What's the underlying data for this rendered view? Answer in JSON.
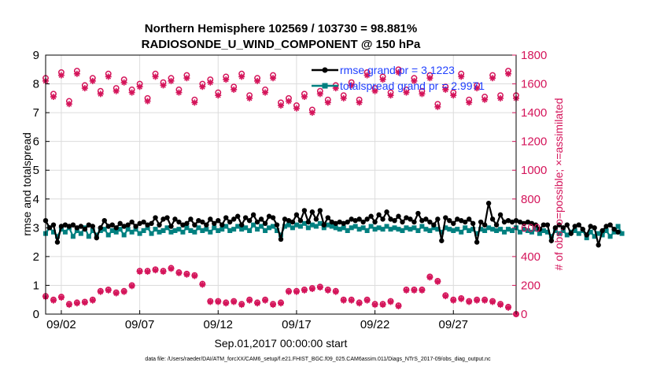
{
  "chart_data": {
    "type": "line",
    "title_line1": "Northern Hemisphere 102569 / 103730 = 98.881%",
    "title_line2": "RADIOSONDE_U_WIND_COMPONENT @ 150 hPa",
    "xlabel": "Sep.01,2017 00:00:00 start",
    "ylabel_left": "rmse and totalspread",
    "ylabel_right": "# of obs: o=possible; ×=assimilated",
    "footnote": "data file: /Users/raeder/DAI/ATM_forcXX/CAM6_setup/f.e21.FHIST_BGC.f09_025.CAM6assim.011/Diags_NTrS_2017-09/obs_diag_output.nc",
    "xlim": [
      1,
      31
    ],
    "ylim_left": [
      0,
      9
    ],
    "ylim_right": [
      0,
      1800
    ],
    "xticks": [
      2,
      7,
      12,
      17,
      22,
      27
    ],
    "xtick_labels": [
      "09/02",
      "09/07",
      "09/12",
      "09/17",
      "09/22",
      "09/27"
    ],
    "yticks_left": [
      0,
      1,
      2,
      3,
      4,
      5,
      6,
      7,
      8,
      9
    ],
    "yticks_right": [
      0,
      200,
      400,
      600,
      800,
      1000,
      1200,
      1400,
      1600,
      1800
    ],
    "legend": {
      "rmse": "rmse grand pr = 3.1223",
      "spread": "totalspread grand pr = 2.9971"
    },
    "colors": {
      "rmse": "#000000",
      "spread": "#008080",
      "obs": "#d4145a"
    },
    "x_start": 1.0,
    "x_step": 0.25,
    "series": [
      {
        "name": "rmse",
        "values": [
          3.25,
          3.0,
          3.1,
          2.5,
          3.05,
          3.1,
          3.05,
          3.1,
          3.0,
          3.05,
          2.95,
          3.1,
          3.05,
          2.65,
          3.0,
          3.25,
          3.05,
          3.1,
          3.0,
          3.15,
          3.05,
          3.1,
          3.2,
          3.05,
          3.15,
          3.2,
          3.1,
          3.15,
          3.35,
          3.1,
          3.3,
          3.35,
          3.05,
          3.3,
          3.2,
          3.1,
          3.15,
          3.3,
          3.1,
          3.25,
          3.2,
          3.1,
          3.3,
          3.15,
          3.25,
          3.1,
          3.35,
          3.2,
          3.3,
          3.4,
          3.1,
          3.35,
          3.25,
          3.45,
          3.2,
          3.3,
          3.15,
          3.4,
          3.35,
          3.1,
          2.6,
          3.3,
          3.25,
          3.2,
          3.45,
          3.25,
          3.6,
          3.2,
          3.55,
          3.3,
          3.6,
          3.1,
          3.35,
          3.2,
          3.15,
          3.2,
          3.15,
          3.2,
          3.3,
          3.25,
          3.3,
          3.2,
          3.3,
          3.4,
          3.2,
          3.45,
          3.3,
          3.55,
          3.3,
          3.25,
          3.4,
          3.2,
          3.35,
          3.3,
          3.2,
          3.5,
          3.25,
          3.3,
          3.2,
          3.1,
          3.3,
          2.55,
          3.35,
          3.25,
          3.15,
          3.3,
          3.25,
          3.2,
          3.3,
          3.15,
          2.5,
          3.2,
          3.1,
          3.85,
          3.3,
          3.1,
          3.45,
          3.2,
          3.25,
          3.2,
          3.25,
          3.2,
          3.15,
          3.2,
          3.15,
          3.1,
          2.95,
          3.1,
          3.1,
          2.55,
          3.0,
          3.1,
          3.0,
          3.1,
          2.8,
          3.05,
          3.1,
          2.95,
          2.75,
          3.05,
          3.0,
          2.4,
          2.9,
          3.05,
          3.1,
          2.95,
          2.85
        ]
      },
      {
        "name": "totalspread",
        "values": [
          2.8,
          3.0,
          2.85,
          2.7,
          2.95,
          2.85,
          3.0,
          2.7,
          2.9,
          2.8,
          3.0,
          2.7,
          2.9,
          2.75,
          2.9,
          2.95,
          2.75,
          2.9,
          2.85,
          2.95,
          2.75,
          2.95,
          2.85,
          2.95,
          2.8,
          2.9,
          3.0,
          2.8,
          2.95,
          2.85,
          2.9,
          3.0,
          2.85,
          2.9,
          2.95,
          2.85,
          3.0,
          2.9,
          2.85,
          3.0,
          2.9,
          2.95,
          2.85,
          3.0,
          2.9,
          2.95,
          3.05,
          2.9,
          2.95,
          3.05,
          2.95,
          3.0,
          2.9,
          3.1,
          2.95,
          3.05,
          2.9,
          3.0,
          3.05,
          2.9,
          2.75,
          3.05,
          3.1,
          3.0,
          3.1,
          3.05,
          3.15,
          3.0,
          3.1,
          3.05,
          3.15,
          3.0,
          3.1,
          3.05,
          3.0,
          2.95,
          3.0,
          2.9,
          3.0,
          3.05,
          2.95,
          3.0,
          2.9,
          3.05,
          2.95,
          3.0,
          2.95,
          3.05,
          2.95,
          3.0,
          2.95,
          2.9,
          3.0,
          2.95,
          3.0,
          2.9,
          3.05,
          2.95,
          2.9,
          3.0,
          2.95,
          2.85,
          3.0,
          2.95,
          2.9,
          2.95,
          2.85,
          3.0,
          2.9,
          2.95,
          2.8,
          2.95,
          2.9,
          3.0,
          2.95,
          2.9,
          2.95,
          2.85,
          2.95,
          2.9,
          3.0,
          2.85,
          2.95,
          2.9,
          2.85,
          2.95,
          2.8,
          2.9,
          2.85,
          2.7,
          2.9,
          2.8,
          2.9,
          2.75,
          2.85,
          2.9,
          2.8,
          2.9,
          2.65,
          2.85,
          2.7,
          2.8,
          2.75,
          2.9,
          2.7,
          2.85,
          3.05,
          2.8
        ]
      },
      {
        "name": "obs_possible",
        "x": [
          1,
          1.5,
          2,
          2.5,
          3,
          3.5,
          4,
          4.5,
          5,
          5.5,
          6,
          6.5,
          7,
          7.5,
          8,
          8.5,
          9,
          9.5,
          10,
          10.5,
          11,
          11.5,
          12,
          12.5,
          13,
          13.5,
          14,
          14.5,
          15,
          15.5,
          16,
          16.5,
          17,
          17.5,
          18,
          18.5,
          19,
          19.5,
          20,
          20.5,
          21,
          21.5,
          22,
          22.5,
          23,
          23.5,
          24,
          24.5,
          25,
          25.5,
          26,
          26.5,
          27,
          27.5,
          28,
          28.5,
          29,
          29.5,
          30,
          30.5,
          31
        ],
        "values": [
          1640,
          1530,
          1680,
          1480,
          1690,
          1590,
          1640,
          1550,
          1670,
          1570,
          1630,
          1560,
          1600,
          1500,
          1670,
          1610,
          1640,
          1560,
          1660,
          1490,
          1600,
          1630,
          1540,
          1650,
          1580,
          1670,
          1520,
          1640,
          1560,
          1660,
          1470,
          1500,
          1450,
          1530,
          1420,
          1550,
          1490,
          1590,
          1520,
          1610,
          1490,
          1680,
          1570,
          1650,
          1540,
          1700,
          1560,
          1640,
          1550,
          1660,
          1460,
          1580,
          1540,
          1670,
          1490,
          1590,
          1510,
          1660,
          1520,
          1690,
          1520
        ]
      },
      {
        "name": "obs_assimilated",
        "x": [
          1,
          1.5,
          2,
          2.5,
          3,
          3.5,
          4,
          4.5,
          5,
          5.5,
          6,
          6.5,
          7,
          7.5,
          8,
          8.5,
          9,
          9.5,
          10,
          10.5,
          11,
          11.5,
          12,
          12.5,
          13,
          13.5,
          14,
          14.5,
          15,
          15.5,
          16,
          16.5,
          17,
          17.5,
          18,
          18.5,
          19,
          19.5,
          20,
          20.5,
          21,
          21.5,
          22,
          22.5,
          23,
          23.5,
          24,
          24.5,
          25,
          25.5,
          26,
          26.5,
          27,
          27.5,
          28,
          28.5,
          29,
          29.5,
          30,
          30.5,
          31
        ],
        "values": [
          1620,
          1510,
          1660,
          1460,
          1670,
          1570,
          1620,
          1530,
          1650,
          1550,
          1610,
          1540,
          1580,
          1480,
          1650,
          1590,
          1620,
          1540,
          1640,
          1470,
          1580,
          1610,
          1520,
          1630,
          1560,
          1650,
          1500,
          1620,
          1540,
          1640,
          1450,
          1480,
          1430,
          1510,
          1400,
          1530,
          1470,
          1570,
          1500,
          1590,
          1470,
          1660,
          1550,
          1630,
          1520,
          1680,
          1540,
          1620,
          1530,
          1640,
          1440,
          1560,
          1520,
          1650,
          1470,
          1570,
          1490,
          1640,
          1500,
          1670,
          1500
        ]
      },
      {
        "name": "obs_low_possible",
        "x": [
          1,
          1.5,
          2,
          2.5,
          3,
          3.5,
          4,
          4.5,
          5,
          5.5,
          6,
          6.5,
          7,
          7.5,
          8,
          8.5,
          9,
          9.5,
          10,
          10.5,
          11,
          11.5,
          12,
          12.5,
          13,
          13.5,
          14,
          14.5,
          15,
          15.5,
          16,
          16.5,
          17,
          17.5,
          18,
          18.5,
          19,
          19.5,
          20,
          20.5,
          21,
          21.5,
          22,
          22.5,
          23,
          23.5,
          24,
          24.5,
          25,
          25.5,
          26,
          26.5,
          27,
          27.5,
          28,
          28.5,
          29,
          29.5,
          30,
          30.5,
          31
        ],
        "values": [
          125,
          100,
          120,
          70,
          80,
          85,
          100,
          160,
          170,
          150,
          160,
          200,
          300,
          300,
          310,
          300,
          320,
          290,
          280,
          270,
          210,
          90,
          90,
          80,
          90,
          70,
          100,
          80,
          100,
          70,
          80,
          160,
          160,
          170,
          180,
          190,
          170,
          160,
          100,
          100,
          80,
          100,
          70,
          70,
          90,
          60,
          170,
          170,
          170,
          260,
          230,
          130,
          100,
          110,
          90,
          100,
          100,
          90,
          70,
          50,
          0
        ]
      },
      {
        "name": "obs_low_assimilated",
        "x": [
          1,
          1.5,
          2,
          2.5,
          3,
          3.5,
          4,
          4.5,
          5,
          5.5,
          6,
          6.5,
          7,
          7.5,
          8,
          8.5,
          9,
          9.5,
          10,
          10.5,
          11,
          11.5,
          12,
          12.5,
          13,
          13.5,
          14,
          14.5,
          15,
          15.5,
          16,
          16.5,
          17,
          17.5,
          18,
          18.5,
          19,
          19.5,
          20,
          20.5,
          21,
          21.5,
          22,
          22.5,
          23,
          23.5,
          24,
          24.5,
          25,
          25.5,
          26,
          26.5,
          27,
          27.5,
          28,
          28.5,
          29,
          29.5,
          30,
          30.5,
          31
        ],
        "values": [
          120,
          95,
          115,
          65,
          75,
          80,
          95,
          155,
          165,
          145,
          155,
          195,
          295,
          295,
          305,
          295,
          315,
          285,
          275,
          265,
          205,
          85,
          85,
          75,
          85,
          65,
          95,
          75,
          95,
          65,
          75,
          155,
          155,
          165,
          175,
          185,
          165,
          155,
          95,
          95,
          75,
          95,
          65,
          65,
          85,
          55,
          165,
          165,
          165,
          255,
          225,
          125,
          95,
          105,
          85,
          95,
          95,
          85,
          65,
          45,
          0
        ]
      }
    ]
  }
}
